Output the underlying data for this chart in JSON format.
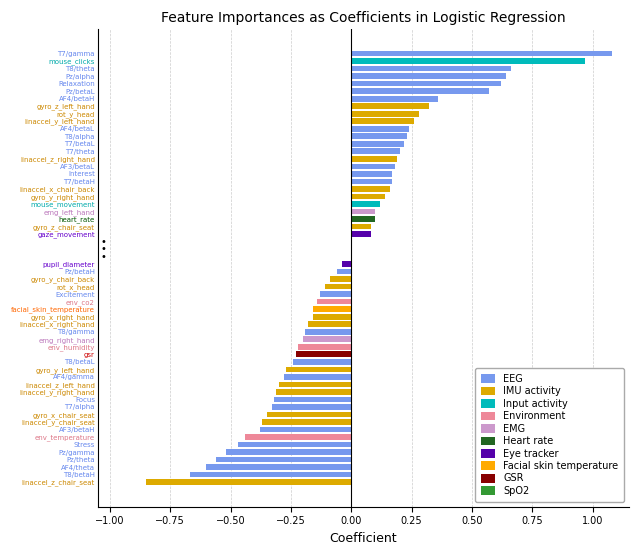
{
  "title": "Feature Importances as Coefficients in Logistic Regression",
  "xlabel": "Coefficient",
  "features": [
    {
      "name": "T7/gamma",
      "value": 1.08,
      "category": "EEG",
      "label_color": "#6688ee"
    },
    {
      "name": "mouse_clicks",
      "value": 0.97,
      "category": "Input activity",
      "label_color": "#00aaaa"
    },
    {
      "name": "T8/theta",
      "value": 0.66,
      "category": "EEG",
      "label_color": "#6688ee"
    },
    {
      "name": "Pz/alpha",
      "value": 0.64,
      "category": "EEG",
      "label_color": "#6688ee"
    },
    {
      "name": "Relaxation",
      "value": 0.62,
      "category": "EEG",
      "label_color": "#6688ee"
    },
    {
      "name": "Pz/betaL",
      "value": 0.57,
      "category": "EEG",
      "label_color": "#6688ee"
    },
    {
      "name": "AF4/betaH",
      "value": 0.36,
      "category": "EEG",
      "label_color": "#6688ee"
    },
    {
      "name": "gyro_z_left_hand",
      "value": 0.32,
      "category": "IMU activity",
      "label_color": "#cc8800"
    },
    {
      "name": "rot_y_head",
      "value": 0.28,
      "category": "IMU activity",
      "label_color": "#cc8800"
    },
    {
      "name": "linaccel_y_left_hand",
      "value": 0.26,
      "category": "IMU activity",
      "label_color": "#cc8800"
    },
    {
      "name": "AF4/betaL",
      "value": 0.24,
      "category": "EEG",
      "label_color": "#6688ee"
    },
    {
      "name": "T8/alpha",
      "value": 0.23,
      "category": "EEG",
      "label_color": "#6688ee"
    },
    {
      "name": "T7/betaL",
      "value": 0.22,
      "category": "EEG",
      "label_color": "#6688ee"
    },
    {
      "name": "T7/theta",
      "value": 0.2,
      "category": "EEG",
      "label_color": "#6688ee"
    },
    {
      "name": "linaccel_z_right_hand",
      "value": 0.19,
      "category": "IMU activity",
      "label_color": "#cc8800"
    },
    {
      "name": "AF3/betaL",
      "value": 0.18,
      "category": "EEG",
      "label_color": "#6688ee"
    },
    {
      "name": "Interest",
      "value": 0.17,
      "category": "EEG",
      "label_color": "#6688ee"
    },
    {
      "name": "T7/betaH",
      "value": 0.17,
      "category": "EEG",
      "label_color": "#6688ee"
    },
    {
      "name": "linaccel_x_chair_back",
      "value": 0.16,
      "category": "IMU activity",
      "label_color": "#cc8800"
    },
    {
      "name": "gyro_y_right_hand",
      "value": 0.14,
      "category": "IMU activity",
      "label_color": "#cc8800"
    },
    {
      "name": "mouse_movement",
      "value": 0.12,
      "category": "Input activity",
      "label_color": "#00aaaa"
    },
    {
      "name": "emg_left_hand",
      "value": 0.1,
      "category": "EMG",
      "label_color": "#bb77bb"
    },
    {
      "name": "heart_rate",
      "value": 0.1,
      "category": "Heart rate",
      "label_color": "#005500"
    },
    {
      "name": "gyro_z_chair_seat",
      "value": 0.08,
      "category": "IMU activity",
      "label_color": "#cc8800"
    },
    {
      "name": "gaze_movement",
      "value": 0.08,
      "category": "Eye tracker",
      "label_color": "#6600cc"
    },
    {
      "name": "pupil_diameter",
      "value": -0.04,
      "category": "Eye tracker",
      "label_color": "#6600cc"
    },
    {
      "name": "Pz/betaH",
      "value": -0.06,
      "category": "EEG",
      "label_color": "#6688ee"
    },
    {
      "name": "gyro_y_chair_back",
      "value": -0.09,
      "category": "IMU activity",
      "label_color": "#cc8800"
    },
    {
      "name": "rot_x_head",
      "value": -0.11,
      "category": "IMU activity",
      "label_color": "#cc8800"
    },
    {
      "name": "Excitement",
      "value": -0.13,
      "category": "EEG",
      "label_color": "#6688ee"
    },
    {
      "name": "env_co2",
      "value": -0.14,
      "category": "Environment",
      "label_color": "#dd7788"
    },
    {
      "name": "facial_skin_temperature",
      "value": -0.16,
      "category": "Facial skin temperature",
      "label_color": "#ff6600"
    },
    {
      "name": "gyro_x_right_hand",
      "value": -0.16,
      "category": "IMU activity",
      "label_color": "#cc8800"
    },
    {
      "name": "linaccel_x_right_hand",
      "value": -0.18,
      "category": "IMU activity",
      "label_color": "#cc8800"
    },
    {
      "name": "T8/gamma",
      "value": -0.19,
      "category": "EEG",
      "label_color": "#6688ee"
    },
    {
      "name": "emg_right_hand",
      "value": -0.2,
      "category": "EMG",
      "label_color": "#bb77bb"
    },
    {
      "name": "env_humidity",
      "value": -0.22,
      "category": "Environment",
      "label_color": "#dd7788"
    },
    {
      "name": "gsr",
      "value": -0.23,
      "category": "GSR",
      "label_color": "#cc0000"
    },
    {
      "name": "T8/betaL",
      "value": -0.24,
      "category": "EEG",
      "label_color": "#6688ee"
    },
    {
      "name": "gyro_y_left_hand",
      "value": -0.27,
      "category": "IMU activity",
      "label_color": "#cc8800"
    },
    {
      "name": "AF4/gamma",
      "value": -0.28,
      "category": "EEG",
      "label_color": "#6688ee"
    },
    {
      "name": "linaccel_z_left_hand",
      "value": -0.3,
      "category": "IMU activity",
      "label_color": "#cc8800"
    },
    {
      "name": "linaccel_y_right_hand",
      "value": -0.31,
      "category": "IMU activity",
      "label_color": "#cc8800"
    },
    {
      "name": "Focus",
      "value": -0.32,
      "category": "EEG",
      "label_color": "#6688ee"
    },
    {
      "name": "T7/alpha",
      "value": -0.33,
      "category": "EEG",
      "label_color": "#6688ee"
    },
    {
      "name": "gyro_x_chair_seat",
      "value": -0.35,
      "category": "IMU activity",
      "label_color": "#cc8800"
    },
    {
      "name": "linaccel_y_chair_seat",
      "value": -0.37,
      "category": "IMU activity",
      "label_color": "#cc8800"
    },
    {
      "name": "AF3/betaH",
      "value": -0.38,
      "category": "EEG",
      "label_color": "#6688ee"
    },
    {
      "name": "env_temperature",
      "value": -0.44,
      "category": "Environment",
      "label_color": "#dd7788"
    },
    {
      "name": "Stress",
      "value": -0.47,
      "category": "EEG",
      "label_color": "#6688ee"
    },
    {
      "name": "Pz/gamma",
      "value": -0.52,
      "category": "EEG",
      "label_color": "#6688ee"
    },
    {
      "name": "Pz/theta",
      "value": -0.56,
      "category": "EEG",
      "label_color": "#6688ee"
    },
    {
      "name": "AF4/theta",
      "value": -0.6,
      "category": "EEG",
      "label_color": "#6688ee"
    },
    {
      "name": "T8/betaH",
      "value": -0.67,
      "category": "EEG",
      "label_color": "#6688ee"
    },
    {
      "name": "linaccel_z_chair_seat",
      "value": -0.85,
      "category": "IMU activity",
      "label_color": "#cc8800"
    }
  ],
  "bar_colors": {
    "EEG": "#7799ee",
    "IMU activity": "#ddaa00",
    "Input activity": "#00bbbb",
    "Environment": "#ee8899",
    "EMG": "#cc99cc",
    "Heart rate": "#226622",
    "Eye tracker": "#5500aa",
    "Facial skin temperature": "#ffaa00",
    "GSR": "#880000",
    "SpO2": "#339933"
  },
  "legend_categories": [
    "EEG",
    "IMU activity",
    "Input activity",
    "Environment",
    "EMG",
    "Heart rate",
    "Eye tracker",
    "Facial skin temperature",
    "GSR",
    "SpO2"
  ],
  "xlim_min": -1.05,
  "xlim_max": 1.15
}
